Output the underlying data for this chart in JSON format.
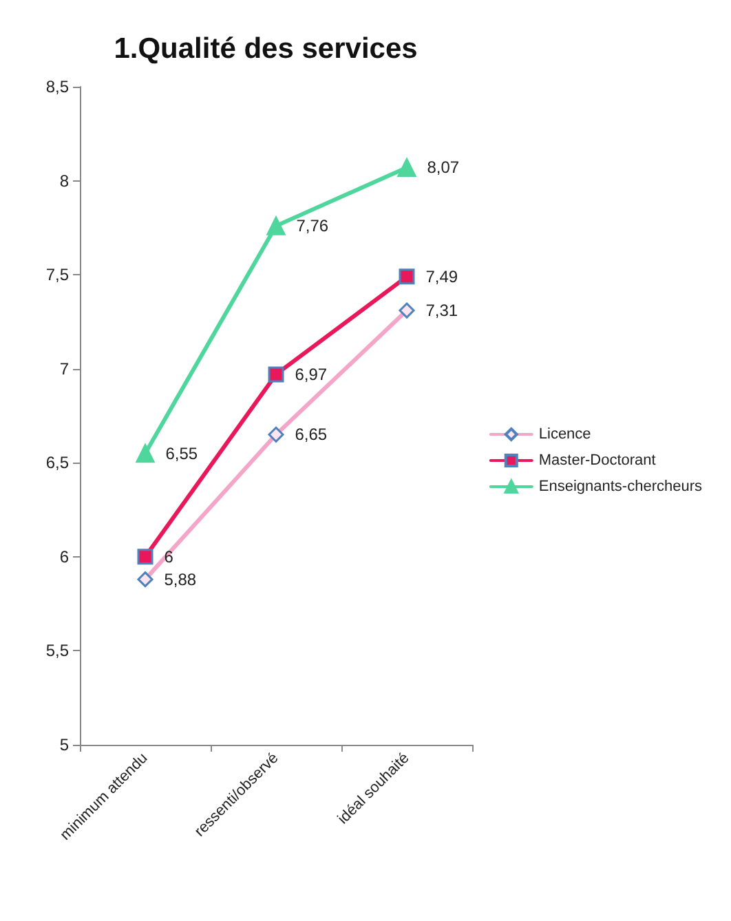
{
  "chart_data": {
    "type": "line",
    "title": "1.Qualité des services",
    "categories": [
      "minimum attendu",
      "ressenti/observé",
      "idéal souhaité"
    ],
    "series": [
      {
        "name": "Licence",
        "color": "#f4a6c8",
        "marker": "diamond",
        "values": [
          5.88,
          6.65,
          7.31
        ],
        "value_labels": [
          "5,88",
          "6,65",
          "7,31"
        ]
      },
      {
        "name": "Master-Doctorant",
        "color": "#e8185a",
        "marker": "square",
        "values": [
          6,
          6.97,
          7.49
        ],
        "value_labels": [
          "6",
          "6,97",
          "7,49"
        ]
      },
      {
        "name": "Enseignants-chercheurs",
        "color": "#4fd69c",
        "marker": "triangle",
        "values": [
          6.55,
          7.76,
          8.07
        ],
        "value_labels": [
          "6,55",
          "7,76",
          "8,07"
        ]
      }
    ],
    "ylim": [
      5,
      8.5
    ],
    "yticks": [
      5,
      {
        "value": 5.5,
        "label": "5,5"
      },
      6,
      {
        "value": 6.5,
        "label": "6,5"
      },
      7,
      {
        "value": 7.5,
        "label": "7,5"
      },
      8,
      {
        "value": 8.5,
        "label": "8,5"
      }
    ],
    "grid": false,
    "legend": "right",
    "line_style": "solid"
  }
}
